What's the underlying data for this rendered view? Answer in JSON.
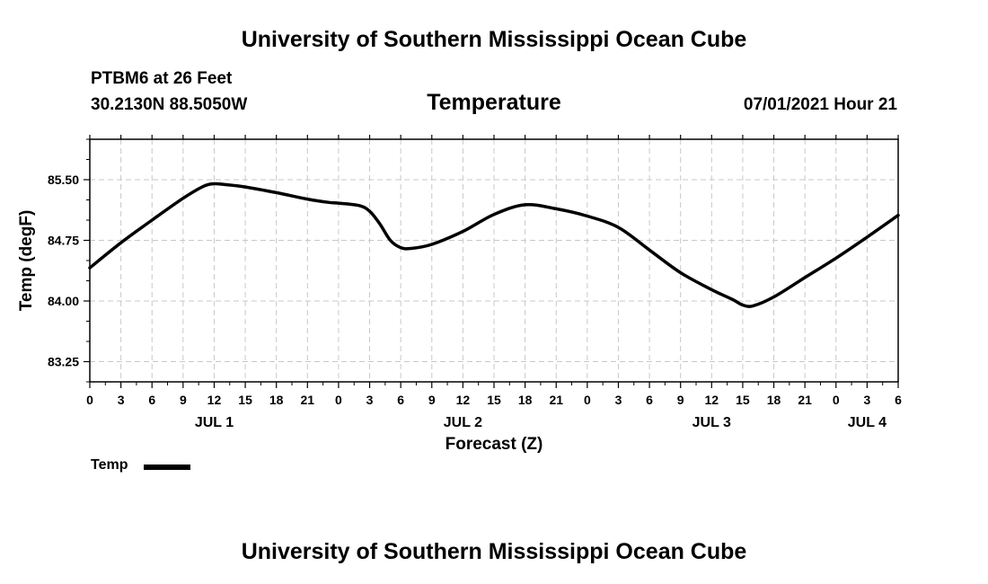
{
  "header": {
    "title": "University of Southern Mississippi Ocean Cube",
    "station": "PTBM6 at 26 Feet",
    "coordinates": "30.2130N  88.5050W",
    "variable": "Temperature",
    "datetime": "07/01/2021 Hour 21"
  },
  "footer": {
    "title": "University of Southern Mississippi Ocean Cube"
  },
  "legend": {
    "label": "Temp"
  },
  "chart_data": {
    "type": "line",
    "title": "Temperature",
    "xlabel": "Forecast (Z)",
    "ylabel": "Temp (degF)",
    "xlim": [
      0,
      78
    ],
    "ylim": [
      83.0,
      86.0
    ],
    "grid": true,
    "x_tick_values": [
      0,
      3,
      6,
      9,
      12,
      15,
      18,
      21,
      24,
      27,
      30,
      33,
      36,
      39,
      42,
      45,
      48,
      51,
      54,
      57,
      60,
      63,
      66,
      69,
      72,
      75,
      78
    ],
    "x_tick_labels": [
      "0",
      "3",
      "6",
      "9",
      "12",
      "15",
      "18",
      "21",
      "0",
      "3",
      "6",
      "9",
      "12",
      "15",
      "18",
      "21",
      "0",
      "3",
      "6",
      "9",
      "12",
      "15",
      "18",
      "21",
      "0",
      "3",
      "6"
    ],
    "y_tick_values": [
      83.25,
      84.0,
      84.75,
      85.5
    ],
    "y_tick_labels": [
      "83.25",
      "84.00",
      "84.75",
      "85.50"
    ],
    "day_labels": [
      {
        "label": "JUL 1",
        "x": 12
      },
      {
        "label": "JUL 2",
        "x": 36
      },
      {
        "label": "JUL 3",
        "x": 60
      },
      {
        "label": "JUL 4",
        "x": 75
      }
    ],
    "series": [
      {
        "name": "Temp",
        "color": "#000000",
        "x": [
          0,
          3,
          6,
          9,
          11,
          12,
          13,
          15,
          18,
          21,
          23,
          24,
          26,
          27,
          28,
          29,
          30,
          31,
          33,
          36,
          39,
          42,
          45,
          48,
          51,
          54,
          57,
          60,
          62,
          63,
          64,
          66,
          69,
          72,
          75,
          78
        ],
        "y": [
          84.41,
          84.72,
          85.0,
          85.27,
          85.42,
          85.45,
          85.44,
          85.41,
          85.34,
          85.26,
          85.22,
          85.21,
          85.18,
          85.11,
          84.95,
          84.75,
          84.66,
          84.65,
          84.7,
          84.86,
          85.07,
          85.19,
          85.14,
          85.05,
          84.91,
          84.63,
          84.35,
          84.14,
          84.02,
          83.95,
          83.94,
          84.05,
          84.29,
          84.53,
          84.79,
          85.06
        ]
      }
    ]
  }
}
